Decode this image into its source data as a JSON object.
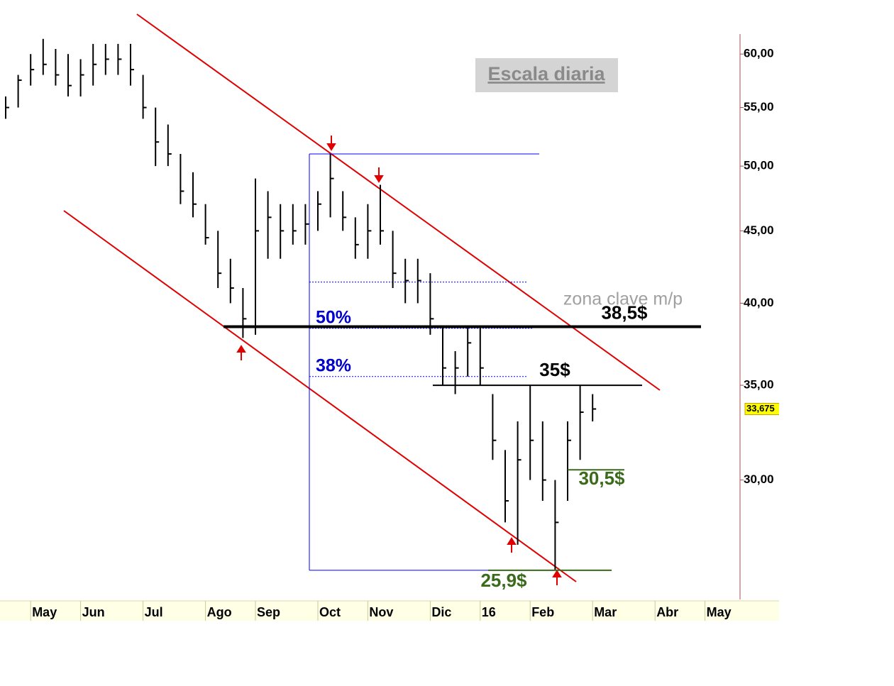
{
  "chart_data": {
    "type": "ohlc",
    "title": "Escala diaria",
    "categories": [
      null,
      null,
      "May",
      null,
      null,
      null,
      "Jun",
      null,
      null,
      null,
      null,
      "Jul",
      null,
      null,
      null,
      null,
      "Ago",
      null,
      null,
      null,
      "Sep",
      null,
      null,
      null,
      null,
      "Oct",
      null,
      null,
      null,
      "Nov",
      null,
      null,
      null,
      null,
      "Dic",
      null,
      null,
      null,
      "16",
      null,
      null,
      null,
      "Feb",
      null,
      null,
      null,
      null,
      "Mar",
      null,
      null,
      null,
      null,
      "Abr",
      null,
      null,
      null,
      "May"
    ],
    "high": [
      56,
      58,
      60,
      61.5,
      60.5,
      60,
      59.5,
      61,
      61,
      61,
      61,
      58,
      55,
      53.5,
      51,
      49.5,
      47,
      45,
      43,
      41,
      49,
      48,
      47,
      47,
      47,
      48,
      51,
      48,
      46,
      47,
      48.5,
      45,
      43,
      43,
      42,
      38.5,
      37,
      38.5,
      38.5,
      34.5,
      31.5,
      33,
      35,
      33,
      30,
      33,
      35,
      34.5,
      null,
      null,
      null,
      null,
      null,
      null,
      null,
      null,
      null
    ],
    "low": [
      54,
      55,
      57,
      58,
      57,
      56,
      56,
      57,
      58,
      58,
      57,
      54,
      50,
      50,
      47,
      46,
      44,
      41,
      40,
      37.8,
      38,
      43,
      43,
      44,
      44,
      45,
      46,
      45,
      43,
      43,
      44,
      41,
      40,
      40,
      38,
      35,
      34.5,
      35.5,
      35,
      31,
      28,
      27,
      30,
      29,
      25.9,
      29,
      31,
      33,
      null,
      null,
      null,
      null,
      null,
      null,
      null,
      null,
      null
    ],
    "close": [
      55,
      57.5,
      58.5,
      59,
      58,
      57,
      58,
      59,
      59.5,
      59.5,
      58.5,
      55,
      52,
      51,
      48,
      47,
      44.5,
      42,
      41,
      39,
      45,
      46,
      45,
      45,
      45.5,
      47,
      49,
      46,
      44,
      45,
      45,
      42,
      41.5,
      41.5,
      39,
      36,
      36,
      37.5,
      36,
      32,
      29,
      31,
      32,
      30,
      28,
      32,
      33.5,
      33.675,
      null,
      null,
      null,
      null,
      null,
      null,
      null,
      null,
      null
    ],
    "color": "#000000",
    "log_scale": true,
    "ylim": [
      24.7,
      62.2
    ],
    "yticks": [
      {
        "value": 30,
        "label": "30,00"
      },
      {
        "value": 35,
        "label": "35,00"
      },
      {
        "value": 40,
        "label": "40,00"
      },
      {
        "value": 45,
        "label": "45,00"
      },
      {
        "value": 50,
        "label": "50,00"
      },
      {
        "value": 55,
        "label": "55,00"
      },
      {
        "value": 60,
        "label": "60,00"
      }
    ],
    "last_price": {
      "value": 33.675,
      "label": "33,675"
    },
    "levels": [
      {
        "value": 38.5,
        "label": "38,5$"
      },
      {
        "value": 35,
        "label": "35$"
      },
      {
        "value": 30.5,
        "label": "30,5$"
      },
      {
        "value": 25.9,
        "label": "25,9$"
      }
    ],
    "fib_range": [
      25.9,
      51
    ],
    "fib_levels": [
      {
        "value": 41.4
      },
      {
        "value": 38.4,
        "label": "50%"
      },
      {
        "value": 35.5,
        "label": "38%"
      }
    ],
    "annotation": "zona clave m/p"
  }
}
